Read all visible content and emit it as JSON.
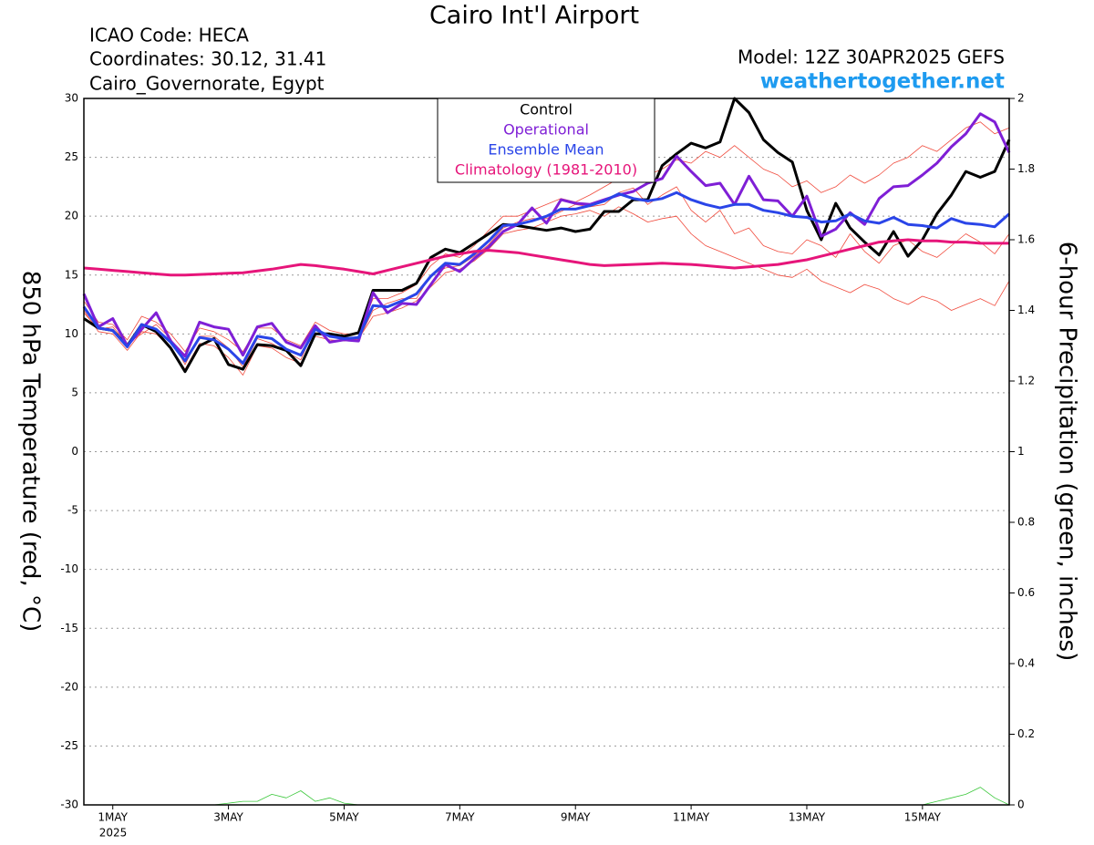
{
  "chart_data": {
    "type": "line",
    "title": "Cairo Int'l Airport",
    "info_lines": [
      "ICAO Code: HECA",
      "Coordinates: 30.12, 31.41",
      "Cairo_Governorate, Egypt"
    ],
    "model": "Model: 12Z 30APR2025 GEFS",
    "site": "weathertogether.net",
    "site_color": "#1e9bf0",
    "y_label": "850 hPa Temperature (red, °C)",
    "y2_label": "6-hour Precipitation (green, inches)",
    "x_year_label": "2025",
    "xlim": [
      0.5,
      16.5
    ],
    "xticks": [
      {
        "value": 1,
        "label": "1MAY"
      },
      {
        "value": 3,
        "label": "3MAY"
      },
      {
        "value": 5,
        "label": "5MAY"
      },
      {
        "value": 7,
        "label": "7MAY"
      },
      {
        "value": 9,
        "label": "9MAY"
      },
      {
        "value": 11,
        "label": "11MAY"
      },
      {
        "value": 13,
        "label": "13MAY"
      },
      {
        "value": 15,
        "label": "15MAY"
      }
    ],
    "ylim": [
      -30,
      30
    ],
    "yticks": [
      -30,
      -25,
      -20,
      -15,
      -10,
      -5,
      0,
      5,
      10,
      15,
      20,
      25,
      30
    ],
    "y2lim": [
      0,
      2
    ],
    "y2ticks": [
      0,
      0.2,
      0.4,
      0.6,
      0.8,
      1,
      1.2,
      1.4,
      1.6,
      1.8,
      2
    ],
    "grid": true,
    "legend": "top-center",
    "x": [
      0.5,
      0.75,
      1,
      1.25,
      1.5,
      1.75,
      2,
      2.25,
      2.5,
      2.75,
      3,
      3.25,
      3.5,
      3.75,
      4,
      4.25,
      4.5,
      4.75,
      5,
      5.25,
      5.5,
      5.75,
      6,
      6.25,
      6.5,
      6.75,
      7,
      7.25,
      7.5,
      7.75,
      8,
      8.25,
      8.5,
      8.75,
      9,
      9.25,
      9.5,
      9.75,
      10,
      10.25,
      10.5,
      10.75,
      11,
      11.25,
      11.5,
      11.75,
      12,
      12.25,
      12.5,
      12.75,
      13,
      13.25,
      13.5,
      13.75,
      14,
      14.25,
      14.5,
      14.75,
      15,
      15.25,
      15.5,
      15.75,
      16,
      16.25,
      16.5
    ],
    "members": [
      {
        "color": "#f04a3c",
        "values": [
          12.0,
          10.2,
          10.0,
          8.6,
          10.2,
          10.0,
          8.8,
          7.0,
          9.2,
          9.0,
          8.0,
          6.5,
          9.0,
          8.8,
          8.0,
          7.5,
          9.8,
          9.5,
          9.4,
          9.6,
          11.5,
          11.8,
          12.2,
          12.8,
          14.0,
          15.2,
          15.5,
          16.2,
          17.2,
          18.5,
          18.8,
          19.0,
          19.5,
          20.0,
          20.2,
          20.5,
          20.0,
          20.8,
          20.2,
          19.5,
          19.8,
          20.0,
          18.5,
          17.5,
          17.0,
          16.5,
          16.0,
          15.5,
          15.0,
          14.8,
          15.5,
          14.5,
          14.0,
          13.5,
          14.2,
          13.8,
          13.0,
          12.5,
          13.2,
          12.8,
          12.0,
          12.5,
          13.0,
          12.4,
          14.5
        ]
      },
      {
        "color": "#f04a3c",
        "values": [
          12.8,
          11.0,
          10.8,
          9.5,
          11.5,
          11.0,
          10.0,
          8.5,
          10.5,
          10.2,
          9.5,
          8.5,
          10.5,
          10.5,
          9.5,
          9.0,
          11.0,
          10.3,
          10.0,
          10.0,
          13.0,
          13.0,
          13.5,
          14.2,
          15.8,
          16.8,
          16.5,
          17.5,
          18.8,
          20.0,
          20.0,
          20.5,
          21.0,
          21.5,
          21.2,
          21.8,
          22.5,
          23.2,
          23.0,
          23.5,
          24.0,
          24.8,
          24.5,
          25.5,
          25.0,
          26.0,
          25.0,
          24.0,
          23.5,
          22.5,
          23.0,
          22.0,
          22.5,
          23.5,
          22.8,
          23.5,
          24.5,
          25.0,
          26.0,
          25.5,
          26.5,
          27.5,
          28.0,
          27.0,
          27.5
        ]
      },
      {
        "color": "#f04a3c",
        "values": [
          11.8,
          10.4,
          10.6,
          9.2,
          10.0,
          10.8,
          9.6,
          7.4,
          9.8,
          9.8,
          8.8,
          7.2,
          9.6,
          9.2,
          8.5,
          7.8,
          10.6,
          9.7,
          9.7,
          9.5,
          12.0,
          12.6,
          13.0,
          13.0,
          15.0,
          15.6,
          15.8,
          16.6,
          17.6,
          19.0,
          19.5,
          19.8,
          19.8,
          20.4,
          21.0,
          20.8,
          21.0,
          22.0,
          22.4,
          21.0,
          21.8,
          22.5,
          20.5,
          19.5,
          20.5,
          18.5,
          19.0,
          17.5,
          17.0,
          16.8,
          18.0,
          17.5,
          16.5,
          18.5,
          17.0,
          16.0,
          17.5,
          18.0,
          17.0,
          16.5,
          17.5,
          18.5,
          17.8,
          16.8,
          18.5
        ]
      }
    ],
    "precip": {
      "color": "#3cc83c",
      "axis": "y2",
      "values": [
        0,
        0,
        0,
        0,
        0,
        0,
        0,
        0,
        0,
        0,
        0.005,
        0.01,
        0.01,
        0.03,
        0.02,
        0.04,
        0.01,
        0.02,
        0.005,
        0,
        0,
        0,
        0,
        0,
        0,
        0,
        0,
        0,
        0,
        0,
        0,
        0,
        0,
        0,
        0,
        0,
        0,
        0,
        0,
        0,
        0,
        0,
        0,
        0,
        0,
        0,
        0,
        0,
        0,
        0,
        0,
        0,
        0,
        0,
        0,
        0,
        0,
        0,
        0,
        0.01,
        0.02,
        0.03,
        0.05,
        0.02,
        0
      ]
    },
    "series": [
      {
        "name": "Control",
        "color": "#000000",
        "width": 3,
        "values": [
          11.3,
          10.5,
          10.3,
          9.0,
          10.8,
          10.2,
          8.8,
          6.8,
          9.0,
          9.6,
          7.4,
          7.0,
          9.1,
          9.0,
          8.6,
          7.3,
          10.0,
          10.0,
          9.8,
          10.1,
          13.7,
          13.7,
          13.7,
          14.3,
          16.5,
          17.2,
          16.9,
          17.7,
          18.5,
          19.3,
          19.2,
          19.0,
          18.8,
          19.0,
          18.7,
          18.9,
          20.4,
          20.4,
          21.4,
          21.4,
          24.3,
          25.3,
          26.2,
          25.8,
          26.3,
          30.0,
          28.8,
          26.5,
          25.4,
          24.6,
          20.5,
          18.0,
          21.1,
          19.0,
          17.8,
          16.7,
          18.7,
          16.6,
          18.0,
          20.2,
          21.8,
          23.8,
          23.3,
          23.8,
          26.5
        ]
      },
      {
        "name": "Operational",
        "color": "#7f1fd6",
        "width": 3,
        "values": [
          13.4,
          10.6,
          11.3,
          9.0,
          10.4,
          11.8,
          9.4,
          8.1,
          11.0,
          10.6,
          10.4,
          8.2,
          10.6,
          10.9,
          9.3,
          8.8,
          10.7,
          9.3,
          9.5,
          9.4,
          13.5,
          11.8,
          12.6,
          12.5,
          14.2,
          15.9,
          15.3,
          16.4,
          17.4,
          18.7,
          19.3,
          20.7,
          19.4,
          21.4,
          21.1,
          21.0,
          21.4,
          21.8,
          22.1,
          22.8,
          23.2,
          25.1,
          23.8,
          22.6,
          22.8,
          21.0,
          23.4,
          21.4,
          21.3,
          20.0,
          21.7,
          18.3,
          18.9,
          20.3,
          19.3,
          21.5,
          22.5,
          22.6,
          23.5,
          24.5,
          25.9,
          27.0,
          28.7,
          28.0,
          25.4
        ]
      },
      {
        "name": "Ensemble Mean",
        "color": "#2a45e8",
        "width": 3,
        "values": [
          12.3,
          10.5,
          10.3,
          8.9,
          10.8,
          10.4,
          9.3,
          7.7,
          9.7,
          9.5,
          8.7,
          7.5,
          9.8,
          9.6,
          8.7,
          8.2,
          10.4,
          9.8,
          9.6,
          9.7,
          12.4,
          12.3,
          12.8,
          13.4,
          14.9,
          16.0,
          15.9,
          16.8,
          17.9,
          19.2,
          19.3,
          19.6,
          20.0,
          20.6,
          20.6,
          20.9,
          21.3,
          21.9,
          21.5,
          21.3,
          21.5,
          22.0,
          21.4,
          21.0,
          20.7,
          21.0,
          21.0,
          20.5,
          20.3,
          20.0,
          19.9,
          19.5,
          19.6,
          20.2,
          19.6,
          19.4,
          19.9,
          19.3,
          19.2,
          19.0,
          19.8,
          19.4,
          19.3,
          19.1,
          20.2
        ]
      },
      {
        "name": "Climatology (1981-2010)",
        "color": "#e6157a",
        "width": 3,
        "values": [
          15.6,
          15.5,
          15.4,
          15.3,
          15.2,
          15.1,
          15.0,
          15.0,
          15.05,
          15.1,
          15.15,
          15.2,
          15.35,
          15.5,
          15.7,
          15.9,
          15.8,
          15.65,
          15.5,
          15.3,
          15.1,
          15.4,
          15.7,
          16.0,
          16.3,
          16.6,
          16.8,
          17.0,
          17.1,
          17.0,
          16.9,
          16.7,
          16.5,
          16.3,
          16.1,
          15.9,
          15.8,
          15.85,
          15.9,
          15.95,
          16.0,
          15.95,
          15.9,
          15.8,
          15.7,
          15.6,
          15.7,
          15.8,
          15.9,
          16.1,
          16.3,
          16.6,
          16.9,
          17.2,
          17.5,
          17.8,
          17.9,
          18.0,
          17.9,
          17.9,
          17.8,
          17.8,
          17.7,
          17.7,
          17.7
        ]
      }
    ]
  }
}
